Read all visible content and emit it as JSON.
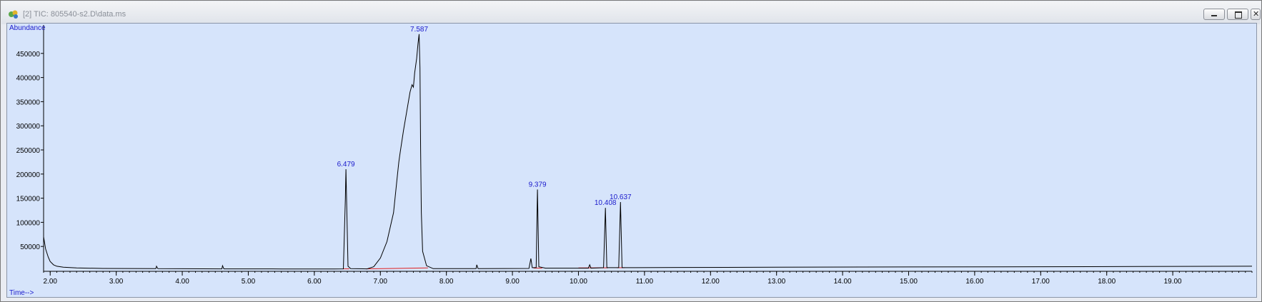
{
  "window": {
    "title": "[2] TIC: 805540-s2.D\\data.ms",
    "icons": {
      "app": "chromatogram-app-icon",
      "minimize": "minimize-icon",
      "restore": "restore-icon",
      "close": "close-icon"
    }
  },
  "colors": {
    "plot_bg": "#d6e4fb",
    "trace": "#000000",
    "baseline": "#e02020",
    "label": "#1a1acc"
  },
  "chart_data": {
    "type": "line",
    "title": "",
    "xlabel": "Time-->",
    "ylabel": "Abundance",
    "xlim": [
      1.9,
      20.2
    ],
    "ylim": [
      0,
      500000
    ],
    "x_ticks": [
      "2.00",
      "3.00",
      "4.00",
      "5.00",
      "6.00",
      "7.00",
      "8.00",
      "9.00",
      "10.00",
      "11.00",
      "12.00",
      "13.00",
      "14.00",
      "15.00",
      "16.00",
      "17.00",
      "18.00",
      "19.00"
    ],
    "y_ticks": [
      "50000",
      "100000",
      "150000",
      "200000",
      "250000",
      "300000",
      "350000",
      "400000",
      "450000"
    ],
    "grid": false,
    "peaks": [
      {
        "label": "6.479",
        "rt": 6.479,
        "abundance": 210000
      },
      {
        "label": "7.587",
        "rt": 7.587,
        "abundance": 490000
      },
      {
        "label": "9.379",
        "rt": 9.379,
        "abundance": 168000
      },
      {
        "label": "10.408",
        "rt": 10.408,
        "abundance": 130000
      },
      {
        "label": "10.637",
        "rt": 10.637,
        "abundance": 142000
      }
    ],
    "series": [
      {
        "values": [
          [
            1.9,
            70000
          ],
          [
            1.93,
            45000
          ],
          [
            1.97,
            28000
          ],
          [
            2.0,
            19000
          ],
          [
            2.05,
            12000
          ],
          [
            2.1,
            9000
          ],
          [
            2.2,
            7000
          ],
          [
            2.4,
            5500
          ],
          [
            2.8,
            4500
          ],
          [
            3.6,
            4000
          ],
          [
            3.61,
            9000
          ],
          [
            3.63,
            4000
          ],
          [
            4.6,
            3600
          ],
          [
            4.61,
            10000
          ],
          [
            4.63,
            3600
          ],
          [
            5.5,
            3400
          ],
          [
            6.3,
            3400
          ],
          [
            6.44,
            3600
          ],
          [
            6.47,
            150000
          ],
          [
            6.479,
            210000
          ],
          [
            6.49,
            140000
          ],
          [
            6.51,
            9000
          ],
          [
            6.55,
            4000
          ],
          [
            6.8,
            3500
          ],
          [
            6.9,
            8000
          ],
          [
            7.0,
            26000
          ],
          [
            7.1,
            60000
          ],
          [
            7.2,
            120000
          ],
          [
            7.26,
            200000
          ],
          [
            7.28,
            225000
          ],
          [
            7.3,
            245000
          ],
          [
            7.35,
            290000
          ],
          [
            7.4,
            330000
          ],
          [
            7.45,
            370000
          ],
          [
            7.48,
            385000
          ],
          [
            7.5,
            380000
          ],
          [
            7.52,
            410000
          ],
          [
            7.55,
            440000
          ],
          [
            7.57,
            470000
          ],
          [
            7.587,
            490000
          ],
          [
            7.6,
            420000
          ],
          [
            7.61,
            250000
          ],
          [
            7.62,
            120000
          ],
          [
            7.64,
            40000
          ],
          [
            7.7,
            10000
          ],
          [
            7.8,
            4000
          ],
          [
            8.45,
            4000
          ],
          [
            8.46,
            12000
          ],
          [
            8.48,
            4000
          ],
          [
            9.25,
            4500
          ],
          [
            9.28,
            25000
          ],
          [
            9.3,
            6000
          ],
          [
            9.36,
            6000
          ],
          [
            9.379,
            168000
          ],
          [
            9.4,
            8000
          ],
          [
            9.5,
            5000
          ],
          [
            10.15,
            5000
          ],
          [
            10.17,
            12000
          ],
          [
            10.19,
            5000
          ],
          [
            10.38,
            6000
          ],
          [
            10.408,
            130000
          ],
          [
            10.43,
            6000
          ],
          [
            10.61,
            6000
          ],
          [
            10.637,
            142000
          ],
          [
            10.66,
            6000
          ],
          [
            11.5,
            6500
          ],
          [
            13.0,
            7000
          ],
          [
            15.0,
            7500
          ],
          [
            17.0,
            8000
          ],
          [
            18.5,
            8500
          ],
          [
            20.2,
            9000
          ]
        ]
      }
    ],
    "baselines": [
      [
        [
          6.43,
          3600
        ],
        [
          6.53,
          3600
        ]
      ],
      [
        [
          6.78,
          3600
        ],
        [
          7.72,
          5500
        ]
      ],
      [
        [
          9.32,
          5200
        ],
        [
          9.45,
          5200
        ]
      ],
      [
        [
          10.0,
          5500
        ],
        [
          10.45,
          5800
        ]
      ],
      [
        [
          10.58,
          6000
        ],
        [
          10.7,
          6000
        ]
      ]
    ]
  }
}
